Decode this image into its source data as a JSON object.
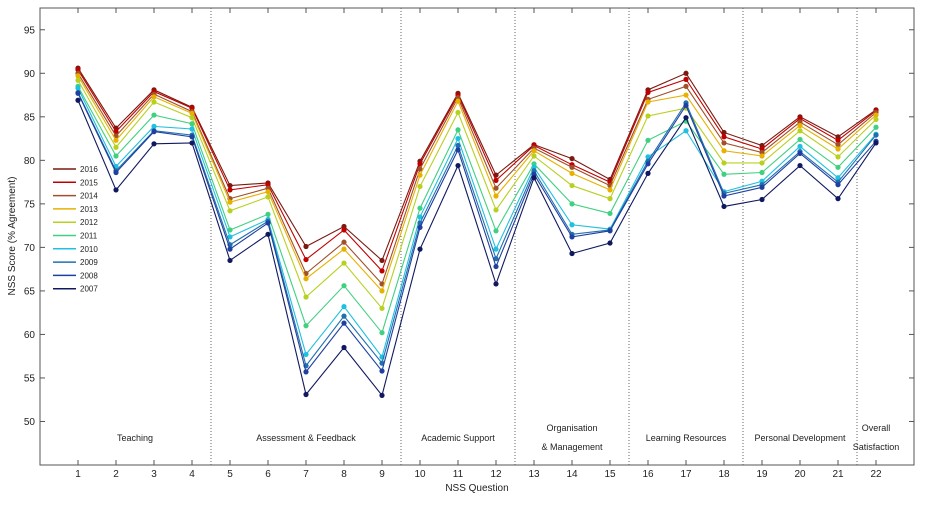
{
  "chart_data": {
    "type": "line",
    "xlabel": "NSS Question",
    "ylabel": "NSS Score (% Agreement)",
    "xlim": [
      0,
      23
    ],
    "ylim": [
      45,
      97.5
    ],
    "yticks": [
      50,
      55,
      60,
      65,
      70,
      75,
      80,
      85,
      90,
      95
    ],
    "x": [
      1,
      2,
      3,
      4,
      5,
      6,
      7,
      8,
      9,
      10,
      11,
      12,
      13,
      14,
      15,
      16,
      17,
      18,
      19,
      20,
      21,
      22
    ],
    "legend_position": "left-middle",
    "sections": [
      {
        "label": [
          "Teaching"
        ],
        "center": 2.5
      },
      {
        "label": [
          "Assessment & Feedback"
        ],
        "center": 7
      },
      {
        "label": [
          "Academic Support"
        ],
        "center": 11
      },
      {
        "label": [
          "Organisation",
          "& Management"
        ],
        "center": 14
      },
      {
        "label": [
          "Learning Resources"
        ],
        "center": 17
      },
      {
        "label": [
          "Personal Development"
        ],
        "center": 20
      },
      {
        "label": [
          "Overall",
          "Satisfaction"
        ],
        "center": 22
      }
    ],
    "dividers": [
      4.5,
      9.5,
      12.5,
      15.5,
      18.5,
      21.5
    ],
    "series": [
      {
        "name": "2016",
        "color": "#7a1a10",
        "values": [
          90.6,
          83.7,
          88.1,
          86.1,
          77.1,
          77.4,
          70.1,
          72.4,
          68.5,
          79.9,
          87.7,
          78.3,
          81.8,
          80.2,
          77.8,
          88.1,
          90.0,
          83.2,
          81.7,
          85.0,
          82.7,
          85.8
        ]
      },
      {
        "name": "2015",
        "color": "#c00000",
        "values": [
          90.4,
          83.3,
          87.9,
          86.0,
          76.6,
          77.2,
          68.6,
          72.0,
          67.3,
          79.6,
          87.5,
          77.7,
          81.7,
          79.5,
          77.5,
          87.8,
          89.3,
          82.7,
          81.3,
          84.8,
          82.3,
          85.7
        ]
      },
      {
        "name": "2014",
        "color": "#a0502a",
        "values": [
          90.0,
          82.8,
          87.6,
          85.6,
          75.6,
          76.8,
          67.0,
          70.6,
          65.8,
          79.0,
          87.2,
          76.8,
          81.4,
          79.2,
          77.1,
          87.0,
          88.5,
          82.0,
          80.9,
          84.4,
          81.8,
          85.5
        ]
      },
      {
        "name": "2013",
        "color": "#e8b000",
        "values": [
          89.7,
          82.3,
          87.3,
          85.4,
          75.2,
          76.4,
          66.4,
          69.8,
          65.0,
          78.3,
          86.8,
          75.9,
          81.1,
          78.5,
          76.6,
          86.7,
          87.5,
          81.1,
          80.5,
          84.0,
          81.3,
          85.2
        ]
      },
      {
        "name": "2012",
        "color": "#b8d020",
        "values": [
          89.2,
          81.5,
          86.7,
          84.9,
          74.2,
          75.8,
          64.3,
          68.2,
          63.0,
          77.0,
          85.5,
          74.3,
          80.5,
          77.1,
          75.6,
          85.1,
          86.0,
          79.7,
          79.7,
          83.4,
          80.4,
          84.7
        ]
      },
      {
        "name": "2011",
        "color": "#40d080",
        "values": [
          88.5,
          80.5,
          85.2,
          84.2,
          72.0,
          73.8,
          61.0,
          65.6,
          60.2,
          74.5,
          83.5,
          71.9,
          79.6,
          75.0,
          73.9,
          82.3,
          84.5,
          78.4,
          78.6,
          82.4,
          79.2,
          83.8
        ]
      },
      {
        "name": "2010",
        "color": "#20c0e0",
        "values": [
          88.3,
          79.3,
          83.9,
          83.6,
          71.2,
          73.2,
          57.7,
          63.2,
          57.4,
          73.5,
          82.5,
          69.8,
          79.2,
          72.6,
          72.1,
          80.4,
          83.4,
          76.4,
          77.6,
          81.6,
          78.0,
          83.0
        ]
      },
      {
        "name": "2009",
        "color": "#2070b0",
        "values": [
          87.8,
          78.8,
          83.4,
          82.9,
          70.3,
          73.0,
          56.4,
          62.1,
          56.7,
          72.8,
          81.7,
          68.7,
          78.8,
          71.5,
          72.0,
          79.9,
          86.6,
          76.2,
          77.2,
          81.0,
          77.5,
          82.9
        ]
      },
      {
        "name": "2008",
        "color": "#2040a0",
        "values": [
          87.7,
          78.6,
          83.3,
          82.7,
          69.8,
          72.8,
          55.7,
          61.3,
          55.8,
          72.3,
          81.2,
          67.8,
          78.4,
          71.2,
          71.9,
          79.6,
          86.3,
          75.9,
          76.9,
          80.8,
          77.2,
          82.2
        ]
      },
      {
        "name": "2007",
        "color": "#101860",
        "values": [
          86.9,
          76.6,
          81.9,
          82.0,
          68.5,
          71.5,
          53.1,
          58.5,
          53.0,
          69.8,
          79.4,
          65.8,
          78.0,
          69.3,
          70.5,
          78.5,
          84.9,
          74.7,
          75.5,
          79.4,
          75.6,
          82.0
        ]
      }
    ]
  }
}
